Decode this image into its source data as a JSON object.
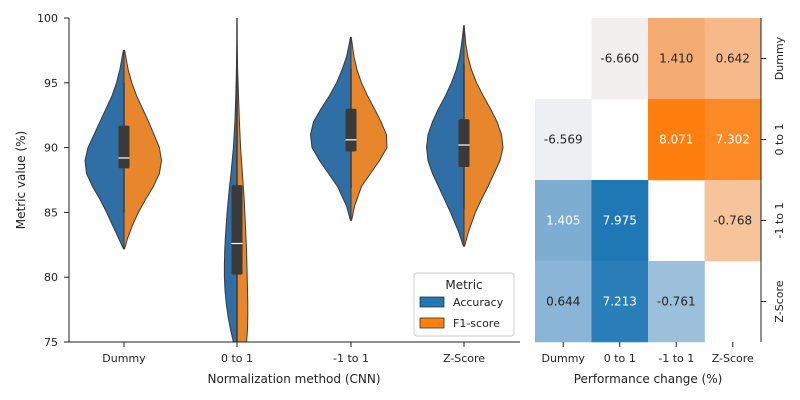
{
  "chart_data": [
    {
      "type": "violin",
      "xlabel": "Normalization method (CNN)",
      "ylabel": "Metric value (%)",
      "ylim": [
        75,
        100
      ],
      "yticks": [
        75,
        80,
        85,
        90,
        95,
        100
      ],
      "categories": [
        "Dummy",
        "0 to 1",
        "-1 to 1",
        "Z-Score"
      ],
      "legend": {
        "title": "Metric",
        "placement": "bottom-right",
        "entries": [
          {
            "name": "Accuracy",
            "color": "#1f77b4"
          },
          {
            "name": "F1-score",
            "color": "#ff7f0e"
          }
        ]
      },
      "series": [
        {
          "name": "Accuracy",
          "side": "left",
          "color": "#2f6fa5",
          "violins": [
            {
              "category": "Dummy",
              "profile": [
                [
                  82.2,
                  0.02
                ],
                [
                  83,
                  0.18
                ],
                [
                  84,
                  0.38
                ],
                [
                  85,
                  0.58
                ],
                [
                  86,
                  0.8
                ],
                [
                  87,
                  1.05
                ],
                [
                  88,
                  1.25
                ],
                [
                  89,
                  1.3
                ],
                [
                  90,
                  1.2
                ],
                [
                  91,
                  1.0
                ],
                [
                  92,
                  0.8
                ],
                [
                  93,
                  0.6
                ],
                [
                  94,
                  0.4
                ],
                [
                  95,
                  0.25
                ],
                [
                  96,
                  0.14
                ],
                [
                  97,
                  0.06
                ],
                [
                  97.5,
                  0.02
                ]
              ]
            },
            {
              "category": "0 to 1",
              "profile": [
                [
                  75,
                  0.12
                ],
                [
                  76,
                  0.22
                ],
                [
                  77,
                  0.3
                ],
                [
                  78,
                  0.36
                ],
                [
                  79,
                  0.4
                ],
                [
                  80,
                  0.42
                ],
                [
                  81,
                  0.42
                ],
                [
                  82,
                  0.41
                ],
                [
                  83,
                  0.39
                ],
                [
                  84,
                  0.36
                ],
                [
                  85,
                  0.33
                ],
                [
                  86,
                  0.29
                ],
                [
                  87,
                  0.25
                ],
                [
                  88,
                  0.2
                ],
                [
                  89,
                  0.16
                ],
                [
                  90,
                  0.12
                ],
                [
                  92,
                  0.07
                ],
                [
                  94,
                  0.04
                ],
                [
                  96,
                  0.02
                ],
                [
                  98,
                  0.01
                ],
                [
                  100,
                  0.005
                ]
              ]
            },
            {
              "category": "-1 to 1",
              "profile": [
                [
                  84.4,
                  0.02
                ],
                [
                  85.5,
                  0.15
                ],
                [
                  87,
                  0.45
                ],
                [
                  88,
                  0.75
                ],
                [
                  89,
                  1.05
                ],
                [
                  90,
                  1.3
                ],
                [
                  91,
                  1.35
                ],
                [
                  92,
                  1.25
                ],
                [
                  93,
                  1.0
                ],
                [
                  94,
                  0.72
                ],
                [
                  95,
                  0.48
                ],
                [
                  96,
                  0.3
                ],
                [
                  97,
                  0.15
                ],
                [
                  98,
                  0.06
                ],
                [
                  98.5,
                  0.02
                ]
              ]
            },
            {
              "category": "Z-Score",
              "profile": [
                [
                  82.4,
                  0.02
                ],
                [
                  83.5,
                  0.18
                ],
                [
                  85,
                  0.45
                ],
                [
                  86,
                  0.65
                ],
                [
                  87,
                  0.85
                ],
                [
                  88,
                  1.05
                ],
                [
                  89,
                  1.2
                ],
                [
                  90,
                  1.25
                ],
                [
                  91,
                  1.2
                ],
                [
                  92,
                  1.05
                ],
                [
                  93,
                  0.85
                ],
                [
                  94,
                  0.62
                ],
                [
                  95,
                  0.42
                ],
                [
                  96,
                  0.26
                ],
                [
                  97,
                  0.15
                ],
                [
                  98,
                  0.08
                ],
                [
                  99,
                  0.03
                ],
                [
                  99.4,
                  0.01
                ]
              ]
            }
          ]
        },
        {
          "name": "F1-score",
          "side": "right",
          "color": "#e8862b",
          "violins": [
            {
              "category": "Dummy",
              "profile": [
                [
                  82.2,
                  0.02
                ],
                [
                  83,
                  0.12
                ],
                [
                  84,
                  0.28
                ],
                [
                  85,
                  0.48
                ],
                [
                  86,
                  0.72
                ],
                [
                  87,
                  0.98
                ],
                [
                  88,
                  1.18
                ],
                [
                  89,
                  1.25
                ],
                [
                  90,
                  1.18
                ],
                [
                  91,
                  1.0
                ],
                [
                  92,
                  0.82
                ],
                [
                  93,
                  0.62
                ],
                [
                  94,
                  0.42
                ],
                [
                  95,
                  0.26
                ],
                [
                  96,
                  0.14
                ],
                [
                  97,
                  0.06
                ],
                [
                  97.5,
                  0.02
                ]
              ]
            },
            {
              "category": "0 to 1",
              "profile": [
                [
                  75,
                  0.32
                ],
                [
                  76,
                  0.35
                ],
                [
                  77,
                  0.36
                ],
                [
                  78,
                  0.36
                ],
                [
                  79,
                  0.35
                ],
                [
                  80,
                  0.34
                ],
                [
                  81,
                  0.33
                ],
                [
                  82,
                  0.32
                ],
                [
                  83,
                  0.3
                ],
                [
                  84,
                  0.28
                ],
                [
                  85,
                  0.26
                ],
                [
                  86,
                  0.24
                ],
                [
                  87,
                  0.21
                ],
                [
                  88,
                  0.18
                ],
                [
                  89,
                  0.15
                ],
                [
                  90,
                  0.12
                ],
                [
                  92,
                  0.08
                ],
                [
                  94,
                  0.05
                ],
                [
                  96,
                  0.02
                ],
                [
                  98,
                  0.01
                ],
                [
                  100,
                  0.005
                ]
              ]
            },
            {
              "category": "-1 to 1",
              "profile": [
                [
                  84.4,
                  0.02
                ],
                [
                  85.5,
                  0.12
                ],
                [
                  87,
                  0.35
                ],
                [
                  88,
                  0.65
                ],
                [
                  89,
                  0.95
                ],
                [
                  90,
                  1.2
                ],
                [
                  91,
                  1.18
                ],
                [
                  92,
                  1.0
                ],
                [
                  93,
                  0.78
                ],
                [
                  94,
                  0.55
                ],
                [
                  95,
                  0.35
                ],
                [
                  96,
                  0.2
                ],
                [
                  97,
                  0.1
                ],
                [
                  98,
                  0.04
                ],
                [
                  98.5,
                  0.01
                ]
              ]
            },
            {
              "category": "Z-Score",
              "profile": [
                [
                  82.4,
                  0.02
                ],
                [
                  83.5,
                  0.15
                ],
                [
                  85,
                  0.38
                ],
                [
                  86,
                  0.58
                ],
                [
                  87,
                  0.8
                ],
                [
                  88,
                  1.0
                ],
                [
                  89,
                  1.2
                ],
                [
                  90,
                  1.3
                ],
                [
                  91,
                  1.25
                ],
                [
                  92,
                  1.1
                ],
                [
                  93,
                  0.88
                ],
                [
                  94,
                  0.64
                ],
                [
                  95,
                  0.42
                ],
                [
                  96,
                  0.25
                ],
                [
                  97,
                  0.13
                ],
                [
                  98,
                  0.06
                ],
                [
                  99,
                  0.02
                ],
                [
                  99.4,
                  0.01
                ]
              ]
            }
          ]
        }
      ],
      "boxes": [
        {
          "category": "Dummy",
          "q1": 88.4,
          "median": 89.2,
          "q3": 91.7,
          "whisker_low": 85.0,
          "whisker_high": 95.0
        },
        {
          "category": "0 to 1",
          "q1": 80.2,
          "median": 82.6,
          "q3": 87.1,
          "whisker_low": 75.0,
          "whisker_high": 94.8
        },
        {
          "category": "-1 to 1",
          "q1": 89.7,
          "median": 90.6,
          "q3": 93.0,
          "whisker_low": 86.9,
          "whisker_high": 96.1
        },
        {
          "category": "Z-Score",
          "q1": 88.5,
          "median": 90.2,
          "q3": 92.2,
          "whisker_low": 85.3,
          "whisker_high": 96.4
        }
      ]
    },
    {
      "type": "heatmap",
      "xlabel": "Performance change (%)",
      "rows": [
        "Dummy",
        "0 to 1",
        "-1 to 1",
        "Z-Score"
      ],
      "columns": [
        "Dummy",
        "0 to 1",
        "-1 to 1",
        "Z-Score"
      ],
      "values": [
        [
          null,
          "-6.660",
          "1.410",
          "0.642"
        ],
        [
          "-6.569",
          null,
          "8.071",
          "7.302"
        ],
        [
          "1.405",
          "7.975",
          null,
          "-0.768"
        ],
        [
          "0.644",
          "7.213",
          "-0.761",
          null
        ]
      ],
      "cell_colors": [
        [
          null,
          "#f3efee",
          "#f5ac73",
          "#f7b98a"
        ],
        [
          "#eeeff3",
          null,
          "#ff7f0e",
          "#fd8a25"
        ],
        [
          "#7eadd2",
          "#1f77b4",
          null,
          "#f6c49a"
        ],
        [
          "#8ab5d6",
          "#2b7fb9",
          "#9cc0dc",
          null
        ]
      ],
      "text_colors": [
        [
          null,
          "#262626",
          "#262626",
          "#262626"
        ],
        [
          "#262626",
          null,
          "#ffffff",
          "#ffffff"
        ],
        [
          "#ffffff",
          "#ffffff",
          null,
          "#262626"
        ],
        [
          "#262626",
          "#ffffff",
          "#262626",
          null
        ]
      ]
    }
  ]
}
